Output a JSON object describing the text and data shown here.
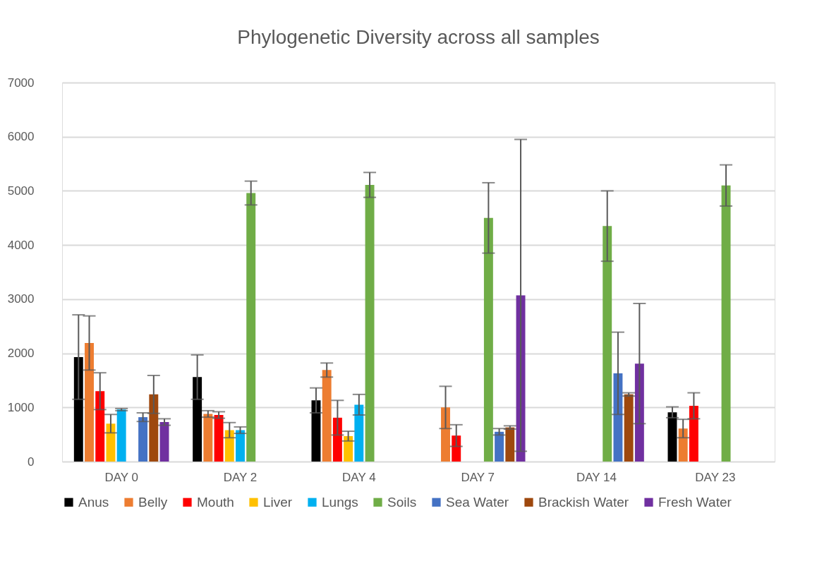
{
  "chart_data": {
    "type": "bar",
    "title": "Phylogenetic Diversity across all samples",
    "categories": [
      "DAY 0",
      "DAY 2",
      "DAY 4",
      "DAY 7",
      "DAY 14",
      "DAY 23"
    ],
    "series": [
      {
        "name": "Anus",
        "color": "#000000",
        "values": [
          1930,
          1560,
          1130,
          null,
          null,
          910
        ],
        "errors": [
          780,
          410,
          230,
          null,
          null,
          100
        ]
      },
      {
        "name": "Belly",
        "color": "#ed7d31",
        "values": [
          2190,
          880,
          1690,
          1000,
          null,
          610
        ],
        "errors": [
          500,
          60,
          130,
          390,
          null,
          170
        ]
      },
      {
        "name": "Mouth",
        "color": "#ff0000",
        "values": [
          1300,
          860,
          810,
          480,
          null,
          1030
        ],
        "errors": [
          340,
          60,
          320,
          200,
          null,
          240
        ]
      },
      {
        "name": "Liver",
        "color": "#ffc000",
        "values": [
          700,
          580,
          470,
          null,
          null,
          null
        ],
        "errors": [
          170,
          140,
          90,
          null,
          null,
          null
        ]
      },
      {
        "name": "Lungs",
        "color": "#00b0f0",
        "values": [
          960,
          580,
          1050,
          null,
          null,
          null
        ],
        "errors": [
          20,
          60,
          190,
          null,
          null,
          null
        ]
      },
      {
        "name": "Soils",
        "color": "#70ad47",
        "values": [
          null,
          4960,
          5110,
          4500,
          4350,
          5100
        ],
        "errors": [
          null,
          220,
          230,
          650,
          650,
          380
        ]
      },
      {
        "name": "Sea Water",
        "color": "#4472c4",
        "values": [
          820,
          null,
          null,
          550,
          1630,
          null
        ],
        "errors": [
          80,
          null,
          null,
          60,
          760,
          null
        ]
      },
      {
        "name": "Brackish Water",
        "color": "#9e480e",
        "values": [
          1240,
          null,
          null,
          630,
          1240,
          null
        ],
        "errors": [
          350,
          null,
          null,
          30,
          30,
          null
        ]
      },
      {
        "name": "Fresh Water",
        "color": "#7030a0",
        "values": [
          730,
          null,
          null,
          3070,
          1810,
          null
        ],
        "errors": [
          60,
          null,
          null,
          2880,
          1110,
          null
        ]
      }
    ],
    "ylim": [
      0,
      7000
    ],
    "yticks": [
      0,
      1000,
      2000,
      3000,
      4000,
      5000,
      6000,
      7000
    ],
    "grid": "y",
    "legend": "bottom"
  }
}
